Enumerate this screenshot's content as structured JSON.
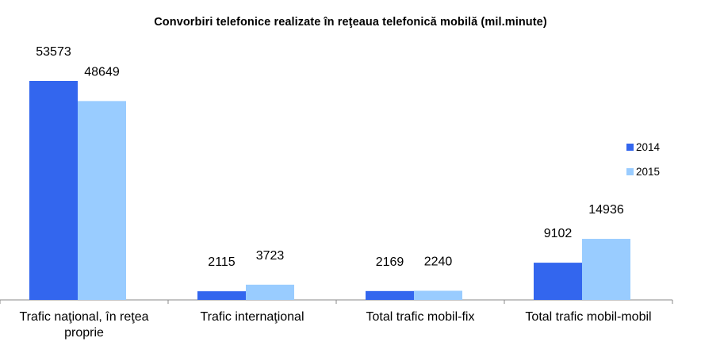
{
  "chart_data": {
    "type": "bar",
    "title": "Convorbiri telefonice realizate în reţeaua telefonică mobilă (mil.minute)",
    "categories": [
      "Trafic naţional, în reţea proprie",
      "Trafic internaţional",
      "Total trafic mobil-fix",
      "Total trafic mobil-mobil"
    ],
    "series": [
      {
        "name": "2014",
        "values": [
          53573,
          2115,
          2169,
          9102
        ],
        "color": "#3366ee"
      },
      {
        "name": "2015",
        "values": [
          48649,
          3723,
          2240,
          14936
        ],
        "color": "#99ccff"
      }
    ],
    "xlabel": "",
    "ylabel": "",
    "ylim": [
      0,
      53573
    ],
    "grid": false,
    "legend_position": "right"
  }
}
